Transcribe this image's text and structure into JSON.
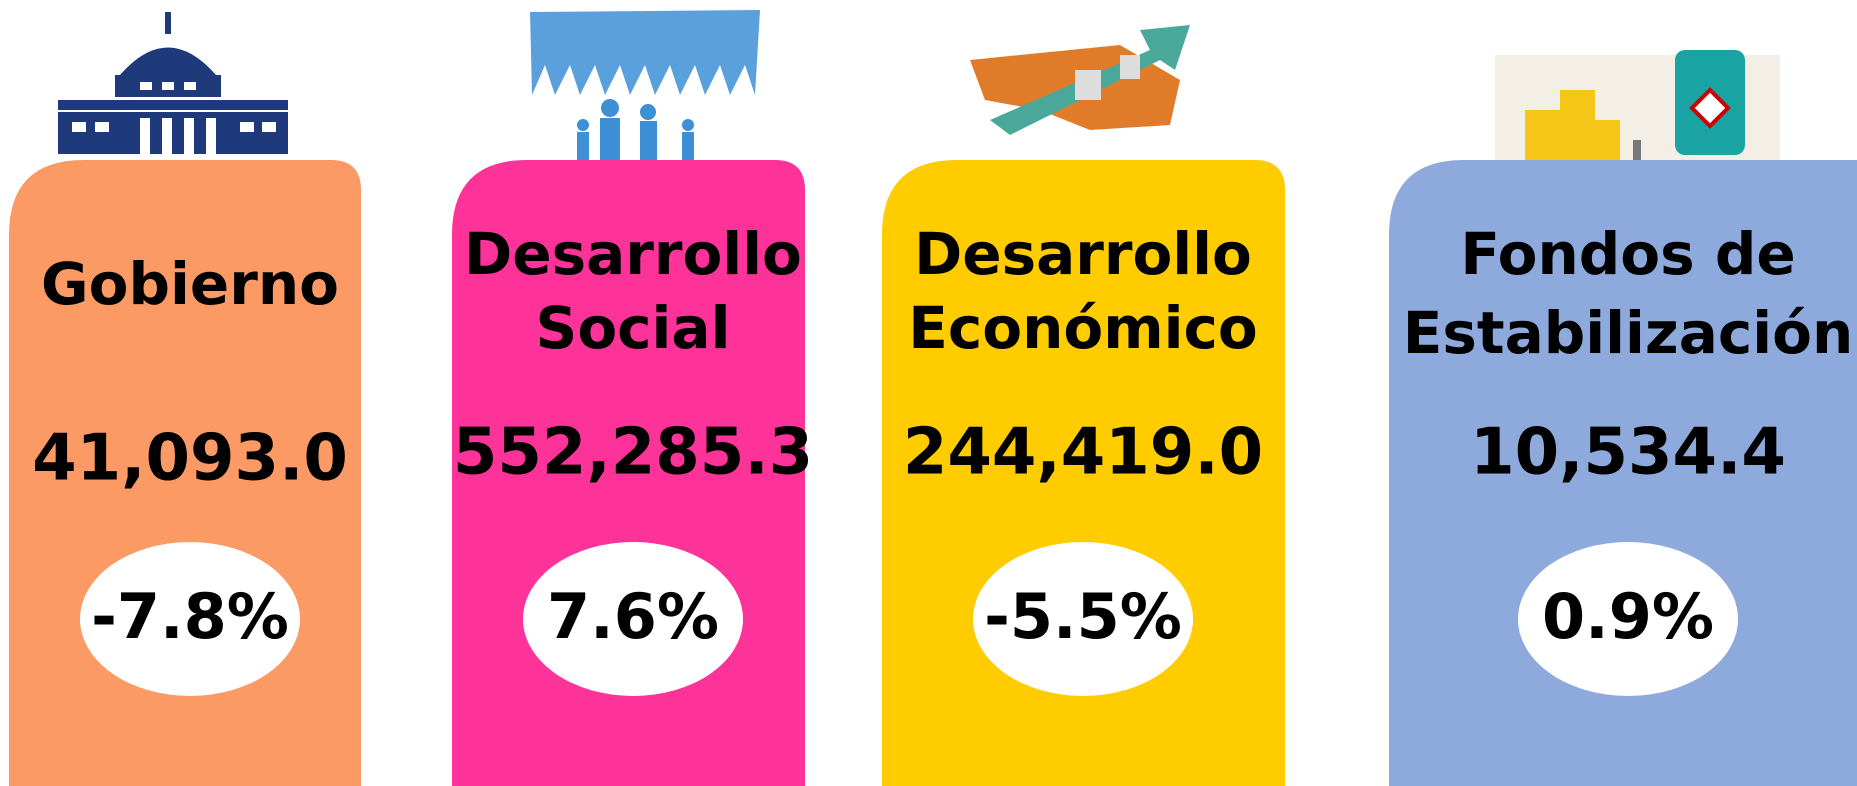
{
  "cards": [
    {
      "title": [
        "Gobierno"
      ],
      "amount": "41,093.0",
      "change": "-7.8%",
      "color": "#fb9a64"
    },
    {
      "title": [
        "Desarrollo",
        "Social"
      ],
      "amount": "552,285.3",
      "change": "7.6%",
      "color": "#fd3399"
    },
    {
      "title": [
        "Desarrollo",
        "Económico"
      ],
      "amount": "244,419.0",
      "change": "-5.5%",
      "color": "#ffcc00"
    },
    {
      "title": [
        "Fondos de",
        "Estabilización"
      ],
      "amount": "10,534.4",
      "change": "0.9%",
      "color": "#8eaadc"
    }
  ]
}
